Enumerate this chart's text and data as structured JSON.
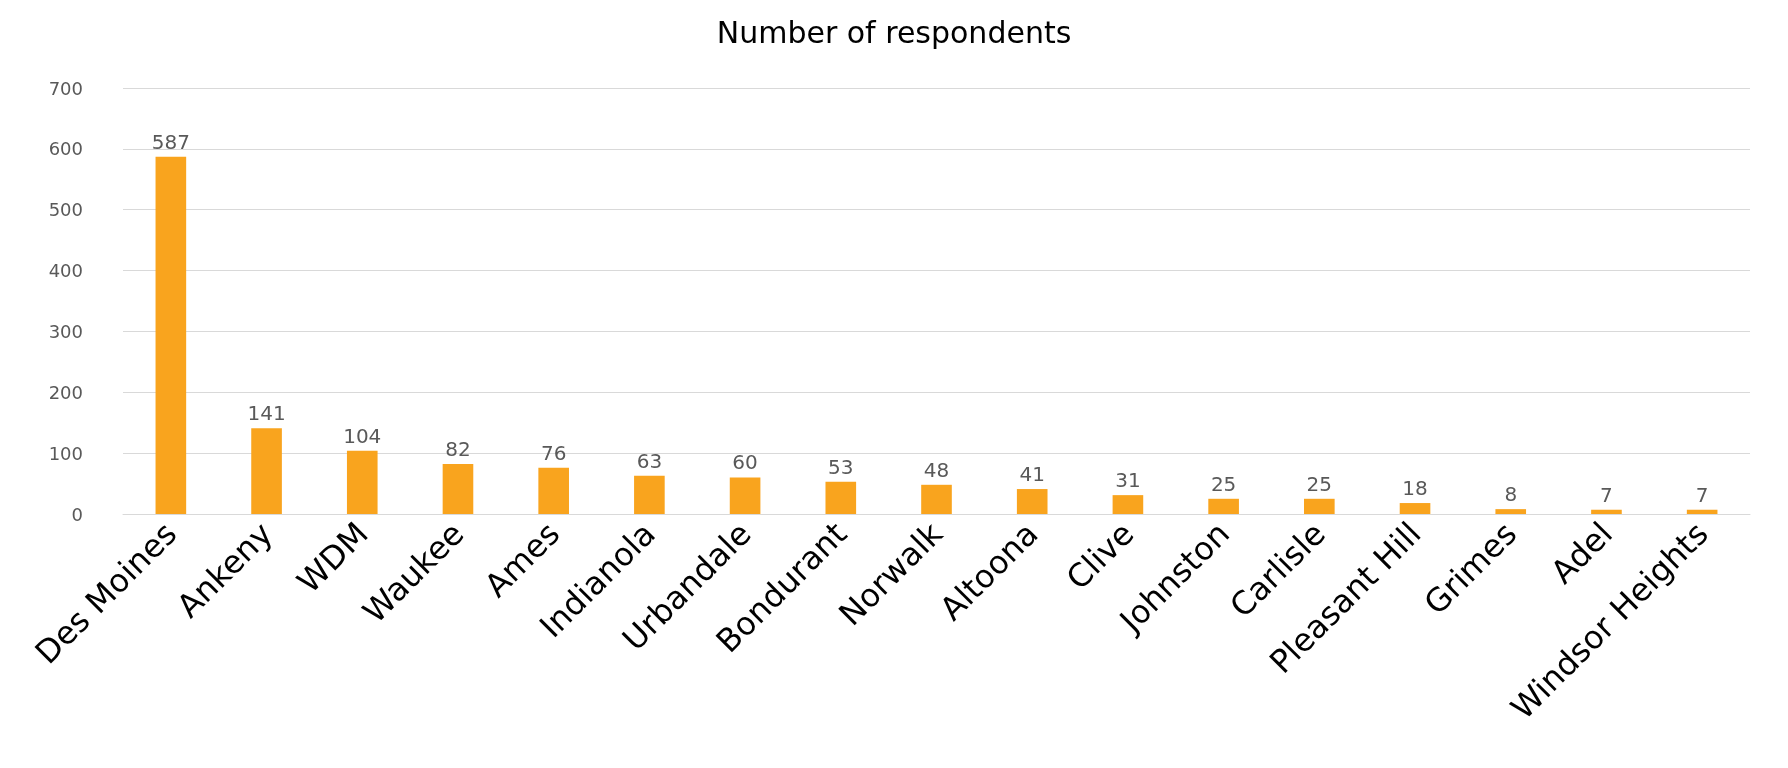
{
  "chart_data": {
    "type": "bar",
    "title": "Number of respondents",
    "categories": [
      "Des Moines",
      "Ankeny",
      "WDM",
      "Waukee",
      "Ames",
      "Indianola",
      "Urbandale",
      "Bondurant",
      "Norwalk",
      "Altoona",
      "Clive",
      "Johnston",
      "Carlisle",
      "Pleasant Hill",
      "Grimes",
      "Adel",
      "Windsor Heights"
    ],
    "values": [
      587,
      141,
      104,
      82,
      76,
      63,
      60,
      53,
      48,
      41,
      31,
      25,
      25,
      18,
      8,
      7,
      7
    ],
    "color": "#f9a41e",
    "ylim": [
      0,
      700
    ],
    "yticks": [
      0,
      100,
      200,
      300,
      400,
      500,
      600,
      700
    ],
    "grid": "y",
    "data_labels": true
  }
}
